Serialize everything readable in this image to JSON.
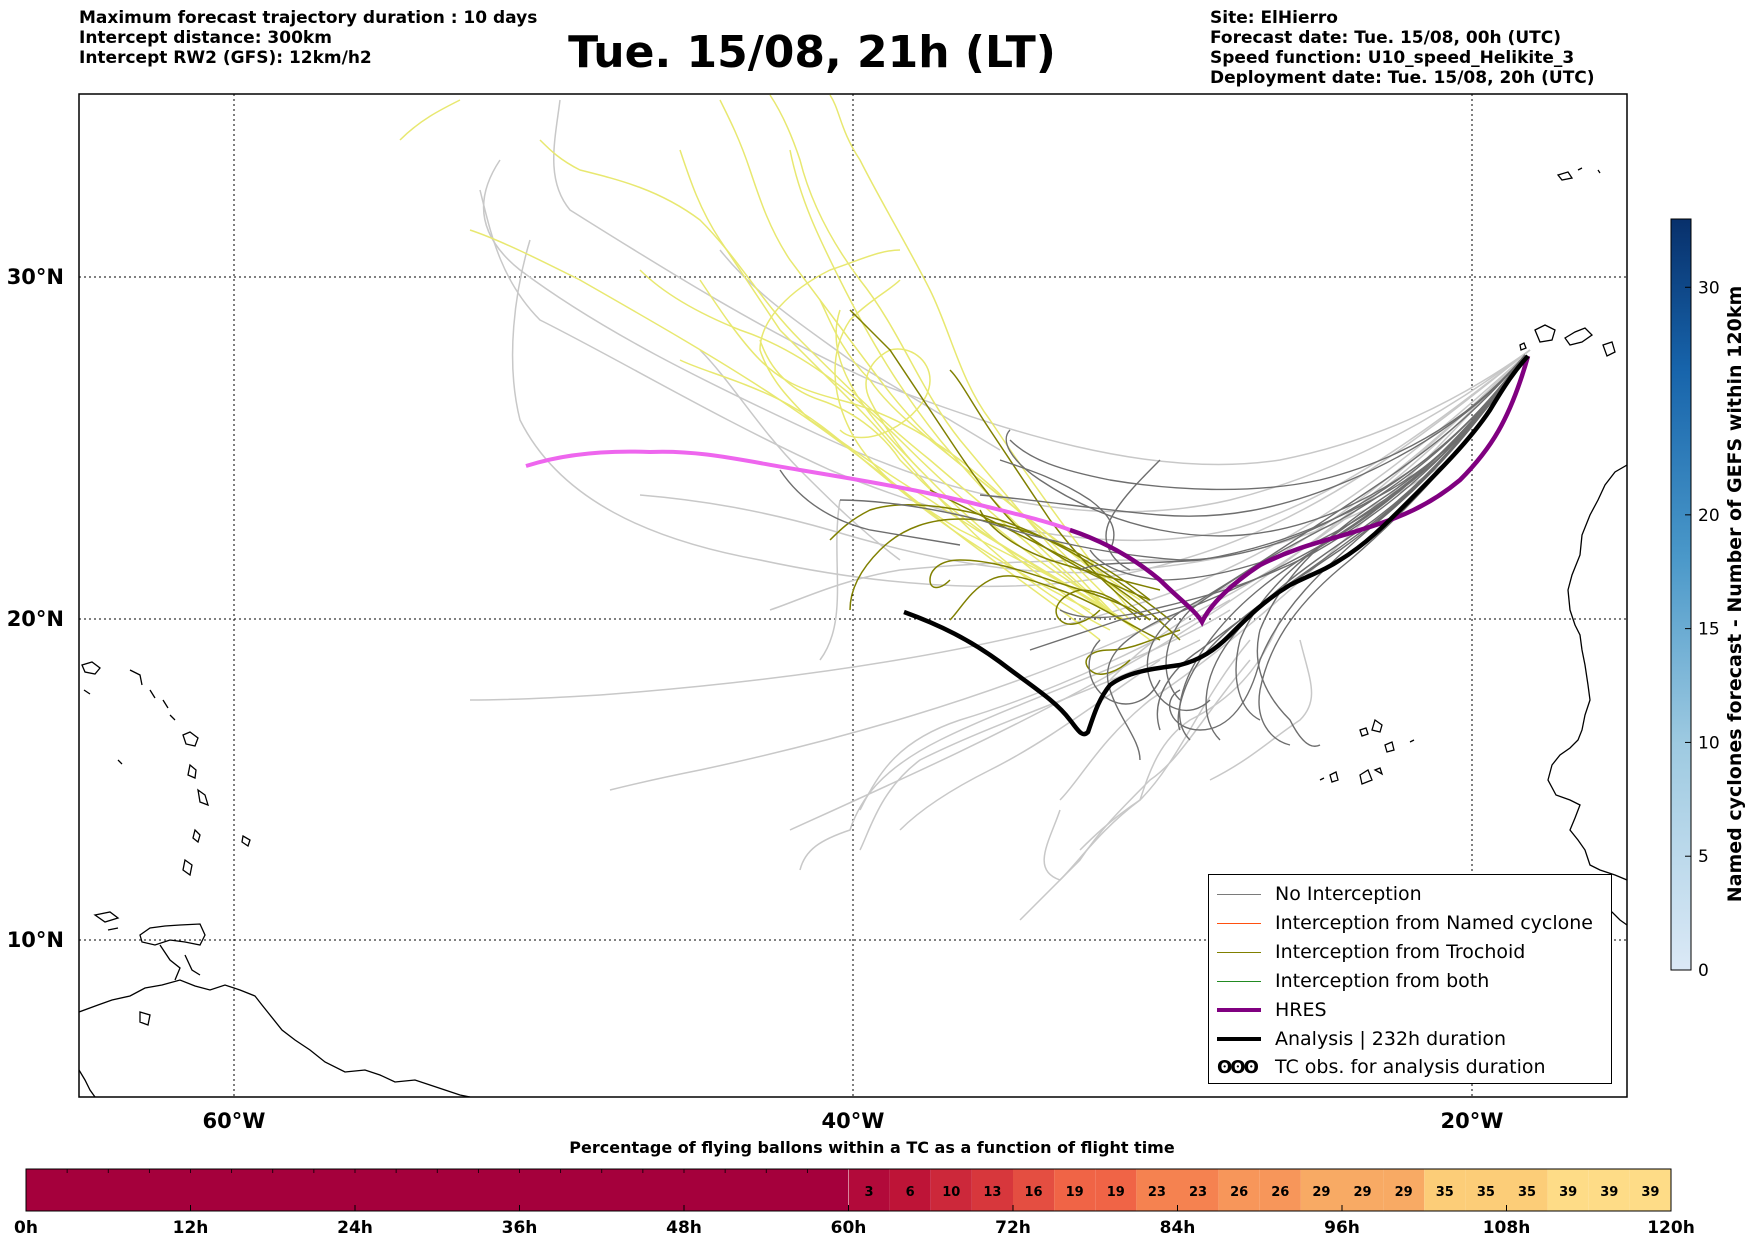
{
  "header": {
    "left": [
      "Maximum forecast trajectory duration : 10 days",
      "Intercept distance: 300km",
      "Intercept RW2 (GFS):  12km/h2"
    ],
    "title": "Tue. 15/08, 21h (LT)",
    "right": [
      "Site: ElHierro",
      "Forecast date: Tue. 15/08, 00h (UTC)",
      "Speed function: U10_speed_Helikite_3",
      "Deployment date: Tue. 15/08, 20h (UTC)"
    ]
  },
  "map": {
    "lon_labels": [
      "60°W",
      "40°W",
      "20°W"
    ],
    "lat_labels": [
      "30°N",
      "20°N",
      "10°N"
    ],
    "trajectory_colors": {
      "no_interception": "#7a7a7a",
      "light": "#cccccc",
      "trochoid": "#808000",
      "yellow": "#e8e870",
      "hres": "#800080",
      "hres_extension": "#ee66ee",
      "analysis": "#000000"
    }
  },
  "legend": [
    {
      "label": "No Interception",
      "color": "#7a7a7a",
      "width": 1.2
    },
    {
      "label": "Interception from Named cyclone",
      "color": "#ff5010",
      "width": 1.2
    },
    {
      "label": "Interception from Trochoid",
      "color": "#808000",
      "width": 1.2
    },
    {
      "label": "Interception from both",
      "color": "#228b22",
      "width": 1.2
    },
    {
      "label": "HRES",
      "color": "#800080",
      "width": 4
    },
    {
      "label": "Analysis | 232h duration",
      "color": "#000000",
      "width": 4
    }
  ],
  "legend_tc": {
    "icon": "ʘʘʘ",
    "label": "TC obs. for analysis duration"
  },
  "colorbar_right": {
    "title": "Named cyclones forecast - Number of GEFS within 120km",
    "ticks": [
      "0",
      "5",
      "10",
      "15",
      "20",
      "30"
    ],
    "tick_values": [
      0,
      5,
      10,
      15,
      20,
      30
    ],
    "max": 33
  },
  "bottom_bar": {
    "title": "Percentage of flying ballons within a TC as a function of flight time",
    "time_labels": [
      "0h",
      "12h",
      "24h",
      "36h",
      "48h",
      "60h",
      "72h",
      "84h",
      "96h",
      "108h",
      "120h"
    ],
    "cell_values": [
      "3",
      "6",
      "10",
      "13",
      "16",
      "19",
      "19",
      "23",
      "23",
      "26",
      "26",
      "29",
      "29",
      "29",
      "35",
      "35",
      "35",
      "39",
      "39",
      "39"
    ]
  }
}
